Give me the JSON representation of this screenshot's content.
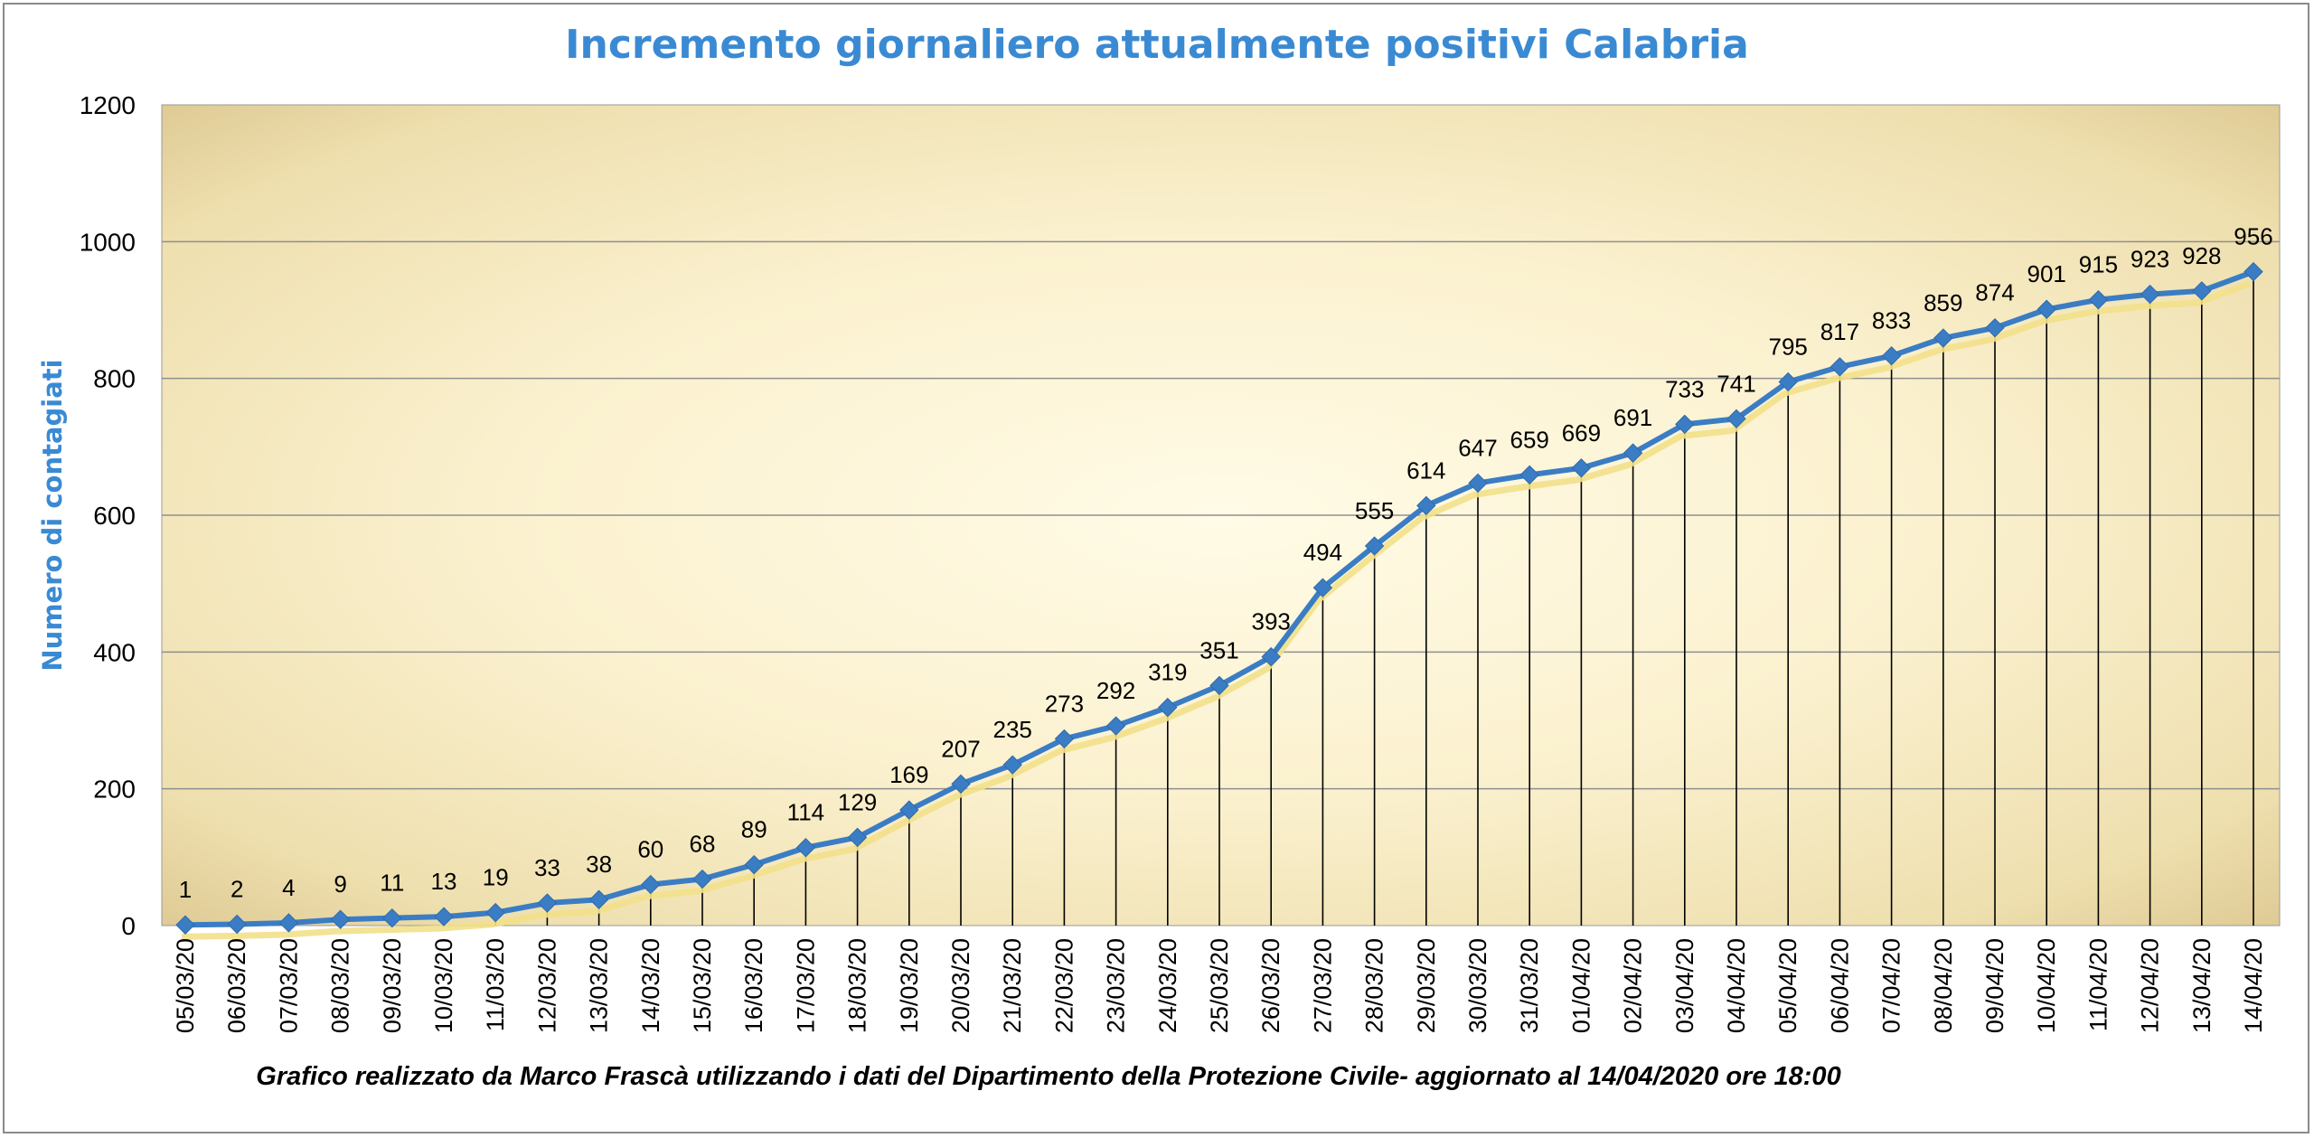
{
  "chart_data": {
    "type": "line",
    "title": "Incremento giornaliero attualmente positivi Calabria",
    "ylabel": "Numero di contagiati",
    "xlabel": "",
    "caption": "Grafico  realizzato da Marco Frascà  utilizzando i dati del Dipartimento  della Protezione Civile- aggiornato al 14/04/2020 ore 18:00",
    "ylim": [
      0,
      1200
    ],
    "yticks": [
      0,
      200,
      400,
      600,
      800,
      1000,
      1200
    ],
    "grid": true,
    "legend": "none",
    "categories": [
      "05/03/20",
      "06/03/20",
      "07/03/20",
      "08/03/20",
      "09/03/20",
      "10/03/20",
      "11/03/20",
      "12/03/20",
      "13/03/20",
      "14/03/20",
      "15/03/20",
      "16/03/20",
      "17/03/20",
      "18/03/20",
      "19/03/20",
      "20/03/20",
      "21/03/20",
      "22/03/20",
      "23/03/20",
      "24/03/20",
      "25/03/20",
      "26/03/20",
      "27/03/20",
      "28/03/20",
      "29/03/20",
      "30/03/20",
      "31/03/20",
      "01/04/20",
      "02/04/20",
      "03/04/20",
      "04/04/20",
      "05/04/20",
      "06/04/20",
      "07/04/20",
      "08/04/20",
      "09/04/20",
      "10/04/20",
      "11/04/20",
      "12/04/20",
      "13/04/20",
      "14/04/20"
    ],
    "values": [
      1,
      2,
      4,
      9,
      11,
      13,
      19,
      33,
      38,
      60,
      68,
      89,
      114,
      129,
      169,
      207,
      235,
      273,
      292,
      319,
      351,
      393,
      494,
      555,
      614,
      647,
      659,
      669,
      691,
      733,
      741,
      795,
      817,
      833,
      859,
      874,
      901,
      915,
      923,
      928,
      956
    ],
    "colors": {
      "line": "#3b7dc4",
      "marker": "#3b7dc4",
      "shadow": "#f2e08a",
      "title": "#3a8ad3",
      "gridline": "#8f8f8f",
      "drop_line": "#000000"
    }
  }
}
